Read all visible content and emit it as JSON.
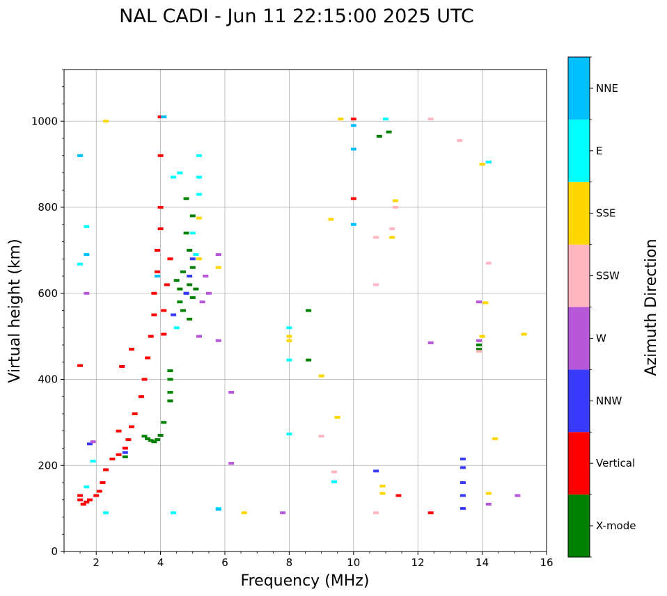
{
  "chart_data": {
    "type": "scatter",
    "title": "NAL CADI - Jun 11 22:15:00 2025 UTC",
    "xlabel": "Frequency (MHz)",
    "ylabel": "Virtual height (km)",
    "xlim": [
      1,
      16
    ],
    "ylim": [
      0,
      1120
    ],
    "xticks": [
      2,
      4,
      6,
      8,
      10,
      12,
      14,
      16
    ],
    "yticks": [
      0,
      200,
      400,
      600,
      800,
      1000
    ],
    "grid": true,
    "colorbar": {
      "label": "Azimuth Direction",
      "categories": [
        {
          "name": "X-mode",
          "color": "#008000"
        },
        {
          "name": "Vertical",
          "color": "#ff0000"
        },
        {
          "name": "NNW",
          "color": "#3a3aff"
        },
        {
          "name": "W",
          "color": "#b657d8"
        },
        {
          "name": "SSW",
          "color": "#ffb6c1"
        },
        {
          "name": "SSE",
          "color": "#ffd700"
        },
        {
          "name": "E",
          "color": "#00ffff"
        },
        {
          "name": "NNE",
          "color": "#00bfff"
        }
      ]
    },
    "series": [
      {
        "name": "X-mode",
        "points": [
          [
            3.5,
            268
          ],
          [
            3.6,
            262
          ],
          [
            3.7,
            258
          ],
          [
            3.8,
            255
          ],
          [
            3.9,
            260
          ],
          [
            4.0,
            270
          ],
          [
            4.1,
            300
          ],
          [
            4.3,
            420
          ],
          [
            4.3,
            400
          ],
          [
            4.3,
            370
          ],
          [
            4.3,
            350
          ],
          [
            4.5,
            630
          ],
          [
            4.6,
            610
          ],
          [
            4.6,
            580
          ],
          [
            4.7,
            650
          ],
          [
            4.7,
            560
          ],
          [
            4.8,
            600
          ],
          [
            4.8,
            740
          ],
          [
            4.9,
            700
          ],
          [
            4.9,
            620
          ],
          [
            5.0,
            590
          ],
          [
            5.0,
            780
          ],
          [
            5.0,
            660
          ],
          [
            4.8,
            820
          ],
          [
            4.9,
            540
          ],
          [
            5.1,
            610
          ],
          [
            8.6,
            560
          ],
          [
            8.6,
            445
          ],
          [
            13.9,
            480
          ],
          [
            13.9,
            470
          ],
          [
            14.2,
            905
          ],
          [
            11.1,
            975
          ],
          [
            10.8,
            965
          ],
          [
            2.9,
            220
          ]
        ]
      },
      {
        "name": "Vertical",
        "points": [
          [
            1.5,
            130
          ],
          [
            1.5,
            120
          ],
          [
            1.6,
            110
          ],
          [
            1.7,
            115
          ],
          [
            1.8,
            120
          ],
          [
            2.0,
            130
          ],
          [
            2.1,
            140
          ],
          [
            2.2,
            160
          ],
          [
            2.3,
            190
          ],
          [
            2.5,
            215
          ],
          [
            2.7,
            225
          ],
          [
            2.9,
            240
          ],
          [
            3.0,
            260
          ],
          [
            3.1,
            290
          ],
          [
            3.2,
            320
          ],
          [
            3.4,
            360
          ],
          [
            3.5,
            400
          ],
          [
            3.6,
            450
          ],
          [
            3.7,
            500
          ],
          [
            3.8,
            550
          ],
          [
            3.8,
            600
          ],
          [
            3.9,
            650
          ],
          [
            3.9,
            700
          ],
          [
            4.0,
            750
          ],
          [
            4.0,
            800
          ],
          [
            4.0,
            920
          ],
          [
            4.0,
            1010
          ],
          [
            4.1,
            560
          ],
          [
            4.2,
            620
          ],
          [
            4.3,
            680
          ],
          [
            2.8,
            430
          ],
          [
            3.1,
            470
          ],
          [
            4.1,
            505
          ],
          [
            10.0,
            1005
          ],
          [
            10.0,
            820
          ],
          [
            11.4,
            130
          ],
          [
            12.4,
            90
          ],
          [
            1.5,
            432
          ],
          [
            2.7,
            280
          ]
        ]
      },
      {
        "name": "NNW",
        "points": [
          [
            13.4,
            215
          ],
          [
            13.4,
            195
          ],
          [
            13.4,
            160
          ],
          [
            13.4,
            130
          ],
          [
            13.4,
            100
          ],
          [
            10.7,
            187
          ],
          [
            4.9,
            640
          ],
          [
            4.8,
            600
          ],
          [
            5.0,
            680
          ],
          [
            4.4,
            550
          ],
          [
            2.9,
            230
          ],
          [
            1.8,
            250
          ]
        ]
      },
      {
        "name": "W",
        "points": [
          [
            6.2,
            370
          ],
          [
            6.2,
            205
          ],
          [
            12.4,
            485
          ],
          [
            14.2,
            110
          ],
          [
            15.1,
            130
          ],
          [
            5.2,
            500
          ],
          [
            5.3,
            580
          ],
          [
            5.4,
            640
          ],
          [
            5.5,
            600
          ],
          [
            5.8,
            490
          ],
          [
            5.8,
            690
          ],
          [
            1.7,
            600
          ],
          [
            13.9,
            580
          ],
          [
            13.9,
            490
          ],
          [
            7.8,
            90
          ],
          [
            1.9,
            255
          ]
        ]
      },
      {
        "name": "SSW",
        "points": [
          [
            9.0,
            268
          ],
          [
            11.2,
            750
          ],
          [
            10.7,
            730
          ],
          [
            11.3,
            800
          ],
          [
            14.2,
            670
          ],
          [
            13.3,
            955
          ],
          [
            12.4,
            1005
          ],
          [
            9.4,
            185
          ],
          [
            10.7,
            90
          ],
          [
            10.7,
            620
          ],
          [
            13.9,
            465
          ]
        ]
      },
      {
        "name": "SSE",
        "points": [
          [
            15.3,
            505
          ],
          [
            8.0,
            500
          ],
          [
            8.0,
            490
          ],
          [
            9.0,
            408
          ],
          [
            9.5,
            312
          ],
          [
            9.6,
            1005
          ],
          [
            10.9,
            152
          ],
          [
            10.9,
            135
          ],
          [
            11.2,
            730
          ],
          [
            11.3,
            815
          ],
          [
            14.0,
            900
          ],
          [
            14.0,
            500
          ],
          [
            14.1,
            578
          ],
          [
            14.2,
            135
          ],
          [
            14.4,
            262
          ],
          [
            2.3,
            1000
          ],
          [
            5.2,
            775
          ],
          [
            5.2,
            680
          ],
          [
            5.8,
            660
          ],
          [
            9.3,
            772
          ],
          [
            6.6,
            90
          ]
        ]
      },
      {
        "name": "E",
        "points": [
          [
            1.5,
            920
          ],
          [
            1.7,
            755
          ],
          [
            1.7,
            690
          ],
          [
            1.5,
            668
          ],
          [
            5.2,
            870
          ],
          [
            5.2,
            830
          ],
          [
            5.2,
            920
          ],
          [
            4.6,
            880
          ],
          [
            4.4,
            870
          ],
          [
            5.1,
            690
          ],
          [
            5.0,
            740
          ],
          [
            4.5,
            520
          ],
          [
            8.0,
            520
          ],
          [
            8.0,
            445
          ],
          [
            8.0,
            273
          ],
          [
            9.4,
            162
          ],
          [
            5.8,
            100
          ],
          [
            4.4,
            90
          ],
          [
            11.0,
            1005
          ],
          [
            14.2,
            905
          ],
          [
            2.3,
            90
          ],
          [
            1.7,
            150
          ],
          [
            1.9,
            210
          ]
        ]
      },
      {
        "name": "NNE",
        "points": [
          [
            1.5,
            920
          ],
          [
            10.0,
            990
          ],
          [
            10.0,
            935
          ],
          [
            10.0,
            760
          ],
          [
            5.8,
            98
          ],
          [
            4.1,
            1010
          ],
          [
            1.7,
            690
          ],
          [
            3.9,
            640
          ]
        ]
      }
    ]
  }
}
